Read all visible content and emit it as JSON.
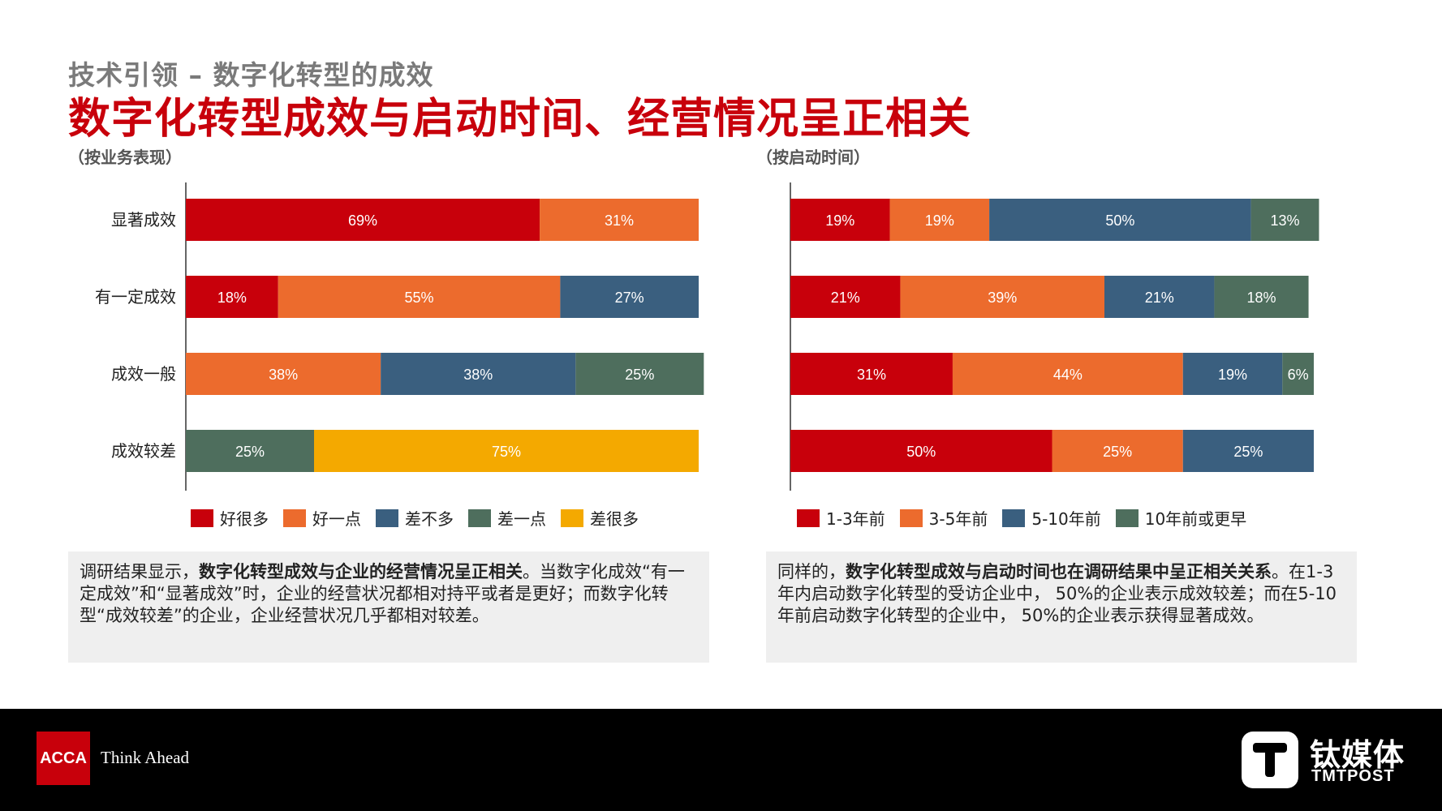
{
  "header": {
    "subtitle": "技术引领 – 数字化转型的成效",
    "title": "数字化转型成效与启动时间、经营情况呈正相关"
  },
  "chart_data": [
    {
      "type": "bar",
      "orientation": "horizontal-stacked-100",
      "label": "（按业务表现）",
      "categories": [
        "显著成效",
        "有一定成效",
        "成效一般",
        "成效较差"
      ],
      "series": [
        {
          "name": "好很多",
          "color": "#c8000b",
          "values": [
            69,
            18,
            0,
            0
          ]
        },
        {
          "name": "好一点",
          "color": "#ec6b2d",
          "values": [
            31,
            55,
            38,
            0
          ]
        },
        {
          "name": "差不多",
          "color": "#3a5f7f",
          "values": [
            0,
            27,
            38,
            0
          ]
        },
        {
          "name": "差一点",
          "color": "#4e6e5d",
          "values": [
            0,
            0,
            25,
            25
          ]
        },
        {
          "name": "差很多",
          "color": "#f4a900",
          "values": [
            0,
            0,
            0,
            75
          ]
        }
      ],
      "legend_position": "bottom"
    },
    {
      "type": "bar",
      "orientation": "horizontal-stacked-100",
      "label": "（按启动时间）",
      "categories": [
        "显著成效",
        "有一定成效",
        "成效一般",
        "成效较差"
      ],
      "series": [
        {
          "name": "1-3年前",
          "color": "#c8000b",
          "values": [
            19,
            21,
            31,
            50
          ]
        },
        {
          "name": "3-5年前",
          "color": "#ec6b2d",
          "values": [
            19,
            39,
            44,
            25
          ]
        },
        {
          "name": "5-10年前",
          "color": "#3a5f7f",
          "values": [
            50,
            21,
            19,
            25
          ]
        },
        {
          "name": "10年前或更早",
          "color": "#4e6e5d",
          "values": [
            13,
            18,
            6,
            0
          ]
        }
      ],
      "legend_position": "bottom"
    }
  ],
  "notes": {
    "left": {
      "p1": "调研结果显示，",
      "b1": "数字化转型成效与企业的经营情况呈正相关",
      "p2": "。当数字化成效“有一定成效”和“显著成效”时，企业的经营状况都相对持平或者是更好；而数字化转型“成效较差”的企业，企业经营状况几乎都相对较差。"
    },
    "right": {
      "p1": "同样的，",
      "b1": "数字化转型成效与启动时间也在调研结果中呈正相关关系",
      "p2": "。在1-3年内启动数字化转型的受访企业中， 50%的企业表示成效较差；而在5-10年前启动数字化转型的企业中， 50%的企业表示获得显著成效。"
    }
  },
  "footer": {
    "acca_logo": "ACCA",
    "acca_tagline": "Think Ahead",
    "tmt_cn": "钛媒体",
    "tmt_en": "TMTPOST",
    "colors": {
      "background": "#000000",
      "acca_red": "#c8000b"
    }
  }
}
